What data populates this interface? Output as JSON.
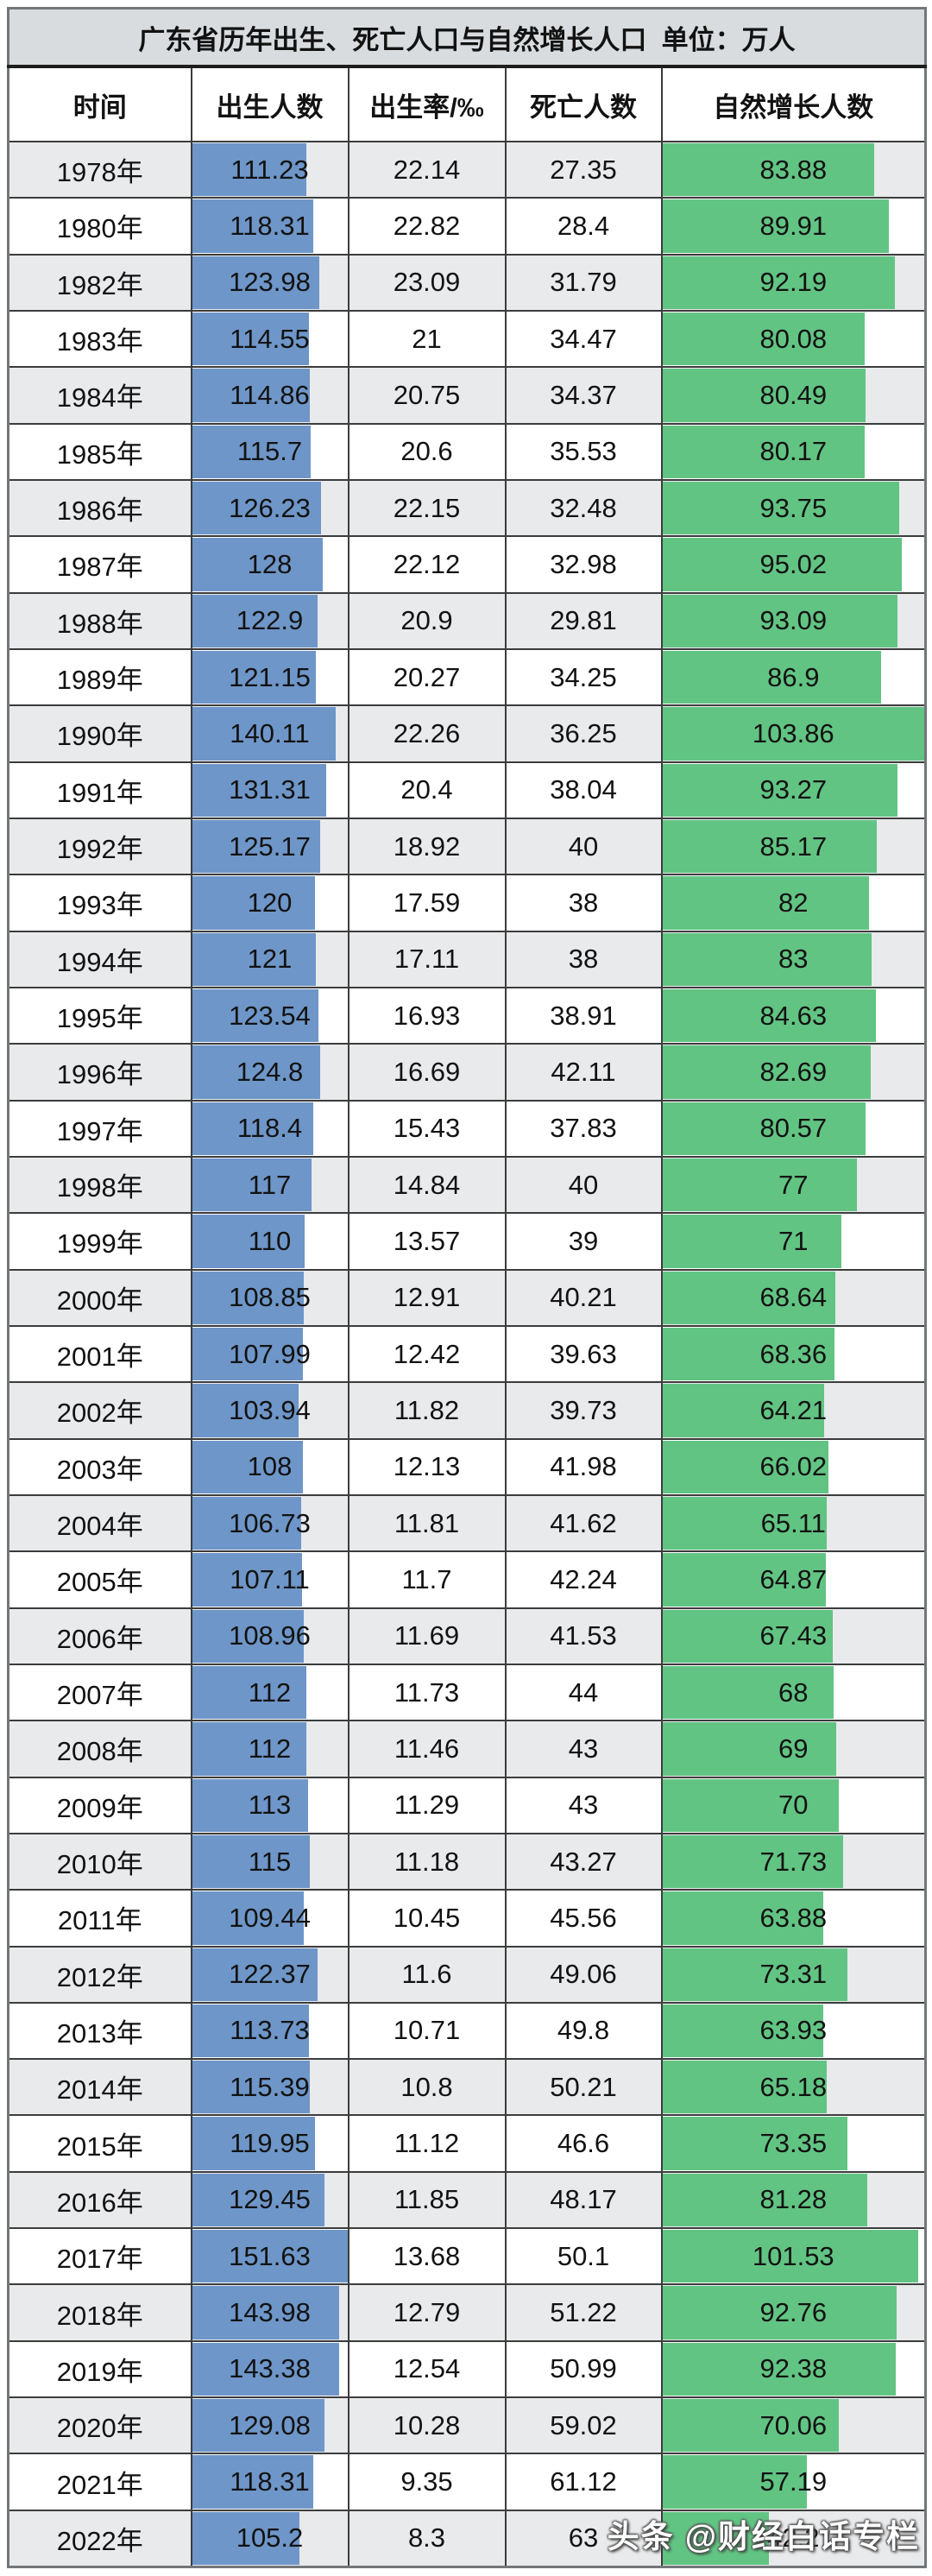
{
  "title": "广东省历年出生、死亡人口与自然增长人口  单位：万人",
  "watermark": {
    "text": "头条 @财经白话专栏"
  },
  "colors": {
    "birth_bar": "#6e96c8",
    "growth_bar": "#62c483",
    "stripe_gray": "#e9eaec",
    "title_bg": "#d8dcde"
  },
  "chart_data": {
    "type": "table",
    "title": "广东省历年出生、死亡人口与自然增长人口",
    "unit": "万人",
    "columns": [
      "时间",
      "出生人数",
      "出生率/‰",
      "死亡人数",
      "自然增长人数"
    ],
    "bar_max": {
      "births": 151.63,
      "growth": 103.86
    },
    "rows": [
      {
        "year": "1978年",
        "births": 111.23,
        "birth_rate": 22.14,
        "deaths": 27.35,
        "growth": 83.88
      },
      {
        "year": "1980年",
        "births": 118.31,
        "birth_rate": 22.82,
        "deaths": 28.4,
        "growth": 89.91
      },
      {
        "year": "1982年",
        "births": 123.98,
        "birth_rate": 23.09,
        "deaths": 31.79,
        "growth": 92.19
      },
      {
        "year": "1983年",
        "births": 114.55,
        "birth_rate": 21,
        "deaths": 34.47,
        "growth": 80.08
      },
      {
        "year": "1984年",
        "births": 114.86,
        "birth_rate": 20.75,
        "deaths": 34.37,
        "growth": 80.49
      },
      {
        "year": "1985年",
        "births": 115.7,
        "birth_rate": 20.6,
        "deaths": 35.53,
        "growth": 80.17
      },
      {
        "year": "1986年",
        "births": 126.23,
        "birth_rate": 22.15,
        "deaths": 32.48,
        "growth": 93.75
      },
      {
        "year": "1987年",
        "births": 128,
        "birth_rate": 22.12,
        "deaths": 32.98,
        "growth": 95.02
      },
      {
        "year": "1988年",
        "births": 122.9,
        "birth_rate": 20.9,
        "deaths": 29.81,
        "growth": 93.09
      },
      {
        "year": "1989年",
        "births": 121.15,
        "birth_rate": 20.27,
        "deaths": 34.25,
        "growth": 86.9
      },
      {
        "year": "1990年",
        "births": 140.11,
        "birth_rate": 22.26,
        "deaths": 36.25,
        "growth": 103.86
      },
      {
        "year": "1991年",
        "births": 131.31,
        "birth_rate": 20.4,
        "deaths": 38.04,
        "growth": 93.27
      },
      {
        "year": "1992年",
        "births": 125.17,
        "birth_rate": 18.92,
        "deaths": 40,
        "growth": 85.17
      },
      {
        "year": "1993年",
        "births": 120,
        "birth_rate": 17.59,
        "deaths": 38,
        "growth": 82
      },
      {
        "year": "1994年",
        "births": 121,
        "birth_rate": 17.11,
        "deaths": 38,
        "growth": 83
      },
      {
        "year": "1995年",
        "births": 123.54,
        "birth_rate": 16.93,
        "deaths": 38.91,
        "growth": 84.63
      },
      {
        "year": "1996年",
        "births": 124.8,
        "birth_rate": 16.69,
        "deaths": 42.11,
        "growth": 82.69
      },
      {
        "year": "1997年",
        "births": 118.4,
        "birth_rate": 15.43,
        "deaths": 37.83,
        "growth": 80.57
      },
      {
        "year": "1998年",
        "births": 117,
        "birth_rate": 14.84,
        "deaths": 40,
        "growth": 77
      },
      {
        "year": "1999年",
        "births": 110,
        "birth_rate": 13.57,
        "deaths": 39,
        "growth": 71
      },
      {
        "year": "2000年",
        "births": 108.85,
        "birth_rate": 12.91,
        "deaths": 40.21,
        "growth": 68.64
      },
      {
        "year": "2001年",
        "births": 107.99,
        "birth_rate": 12.42,
        "deaths": 39.63,
        "growth": 68.36
      },
      {
        "year": "2002年",
        "births": 103.94,
        "birth_rate": 11.82,
        "deaths": 39.73,
        "growth": 64.21
      },
      {
        "year": "2003年",
        "births": 108,
        "birth_rate": 12.13,
        "deaths": 41.98,
        "growth": 66.02
      },
      {
        "year": "2004年",
        "births": 106.73,
        "birth_rate": 11.81,
        "deaths": 41.62,
        "growth": 65.11
      },
      {
        "year": "2005年",
        "births": 107.11,
        "birth_rate": 11.7,
        "deaths": 42.24,
        "growth": 64.87
      },
      {
        "year": "2006年",
        "births": 108.96,
        "birth_rate": 11.69,
        "deaths": 41.53,
        "growth": 67.43
      },
      {
        "year": "2007年",
        "births": 112,
        "birth_rate": 11.73,
        "deaths": 44,
        "growth": 68
      },
      {
        "year": "2008年",
        "births": 112,
        "birth_rate": 11.46,
        "deaths": 43,
        "growth": 69
      },
      {
        "year": "2009年",
        "births": 113,
        "birth_rate": 11.29,
        "deaths": 43,
        "growth": 70
      },
      {
        "year": "2010年",
        "births": 115,
        "birth_rate": 11.18,
        "deaths": 43.27,
        "growth": 71.73
      },
      {
        "year": "2011年",
        "births": 109.44,
        "birth_rate": 10.45,
        "deaths": 45.56,
        "growth": 63.88
      },
      {
        "year": "2012年",
        "births": 122.37,
        "birth_rate": 11.6,
        "deaths": 49.06,
        "growth": 73.31
      },
      {
        "year": "2013年",
        "births": 113.73,
        "birth_rate": 10.71,
        "deaths": 49.8,
        "growth": 63.93
      },
      {
        "year": "2014年",
        "births": 115.39,
        "birth_rate": 10.8,
        "deaths": 50.21,
        "growth": 65.18
      },
      {
        "year": "2015年",
        "births": 119.95,
        "birth_rate": 11.12,
        "deaths": 46.6,
        "growth": 73.35
      },
      {
        "year": "2016年",
        "births": 129.45,
        "birth_rate": 11.85,
        "deaths": 48.17,
        "growth": 81.28
      },
      {
        "year": "2017年",
        "births": 151.63,
        "birth_rate": 13.68,
        "deaths": 50.1,
        "growth": 101.53
      },
      {
        "year": "2018年",
        "births": 143.98,
        "birth_rate": 12.79,
        "deaths": 51.22,
        "growth": 92.76
      },
      {
        "year": "2019年",
        "births": 143.38,
        "birth_rate": 12.54,
        "deaths": 50.99,
        "growth": 92.38
      },
      {
        "year": "2020年",
        "births": 129.08,
        "birth_rate": 10.28,
        "deaths": 59.02,
        "growth": 70.06
      },
      {
        "year": "2021年",
        "births": 118.31,
        "birth_rate": 9.35,
        "deaths": 61.12,
        "growth": 57.19
      },
      {
        "year": "2022年",
        "births": 105.2,
        "birth_rate": 8.3,
        "deaths": 63,
        "growth": 42.2
      }
    ]
  }
}
